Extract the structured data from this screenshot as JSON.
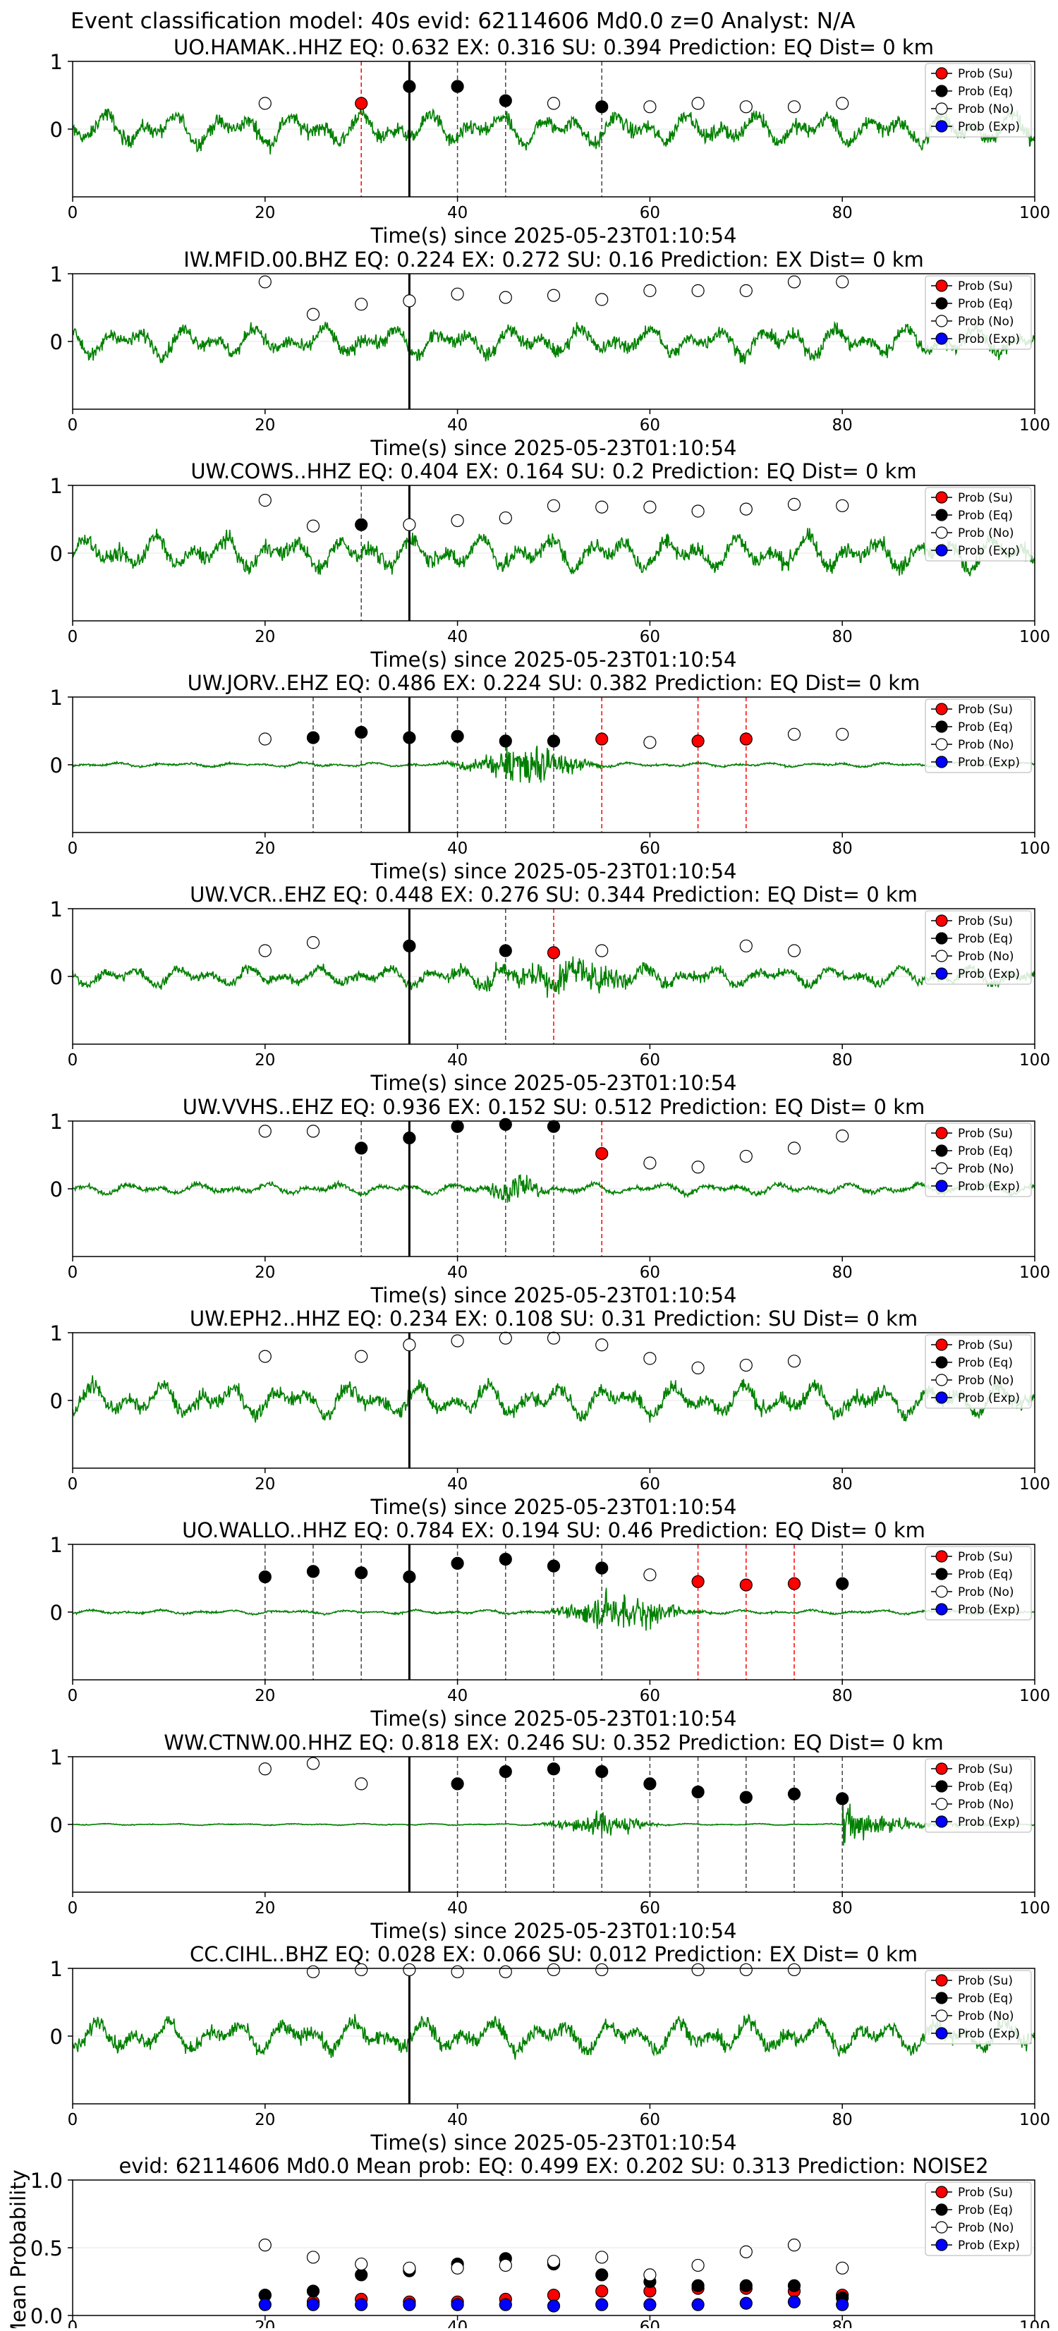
{
  "figure_title": "Event classification model: 40s evid: 62114606 Md0.0 z=0 Analyst: N/A",
  "legend_labels": [
    "Prob (Su)",
    "Prob (Eq)",
    "Prob (No)",
    "Prob (Exp)"
  ],
  "colors": {
    "trace": "#008000",
    "su": "#ff0000",
    "eq": "#000000",
    "no": "#ffffff",
    "exp": "#0000ff"
  },
  "chart_data": [
    {
      "type": "line",
      "station": "UO.HAMAK..HHZ",
      "title": "UO.HAMAK..HHZ   EQ: 0.632  EX: 0.316  SU: 0.394   Prediction: EQ    Dist= 0 km",
      "xlabel": "Time(s) since 2025-05-23T01:10:54",
      "xlim": [
        0,
        100
      ],
      "ylim": [
        -1,
        1
      ],
      "xticks": [
        "0",
        "20",
        "40",
        "60",
        "80",
        "100"
      ],
      "yticks": [
        "1",
        "0"
      ],
      "trace_amp": 0.75,
      "arrival": 35,
      "points": [
        {
          "x": 20,
          "y": 0.38,
          "c": "no"
        },
        {
          "x": 30,
          "y": 0.38,
          "c": "su"
        },
        {
          "x": 35,
          "y": 0.63,
          "c": "eq"
        },
        {
          "x": 40,
          "y": 0.63,
          "c": "eq"
        },
        {
          "x": 45,
          "y": 0.42,
          "c": "eq"
        },
        {
          "x": 50,
          "y": 0.38,
          "c": "no"
        },
        {
          "x": 55,
          "y": 0.33,
          "c": "eq"
        },
        {
          "x": 60,
          "y": 0.33,
          "c": "no"
        },
        {
          "x": 65,
          "y": 0.38,
          "c": "no"
        },
        {
          "x": 70,
          "y": 0.33,
          "c": "no"
        },
        {
          "x": 75,
          "y": 0.33,
          "c": "no"
        },
        {
          "x": 80,
          "y": 0.38,
          "c": "no"
        }
      ]
    },
    {
      "type": "line",
      "station": "IW.MFID.00.BHZ",
      "title": "IW.MFID.00.BHZ   EQ: 0.224  EX: 0.272  SU: 0.16   Prediction: EX    Dist= 0 km",
      "xlabel": "Time(s) since 2025-05-23T01:10:54",
      "xlim": [
        0,
        100
      ],
      "ylim": [
        -1,
        1
      ],
      "xticks": [
        "0",
        "20",
        "40",
        "60",
        "80",
        "100"
      ],
      "yticks": [
        "1",
        "0"
      ],
      "trace_amp": 0.7,
      "arrival": 35,
      "points": [
        {
          "x": 20,
          "y": 0.88,
          "c": "no"
        },
        {
          "x": 25,
          "y": 0.4,
          "c": "no"
        },
        {
          "x": 30,
          "y": 0.55,
          "c": "no"
        },
        {
          "x": 35,
          "y": 0.6,
          "c": "no"
        },
        {
          "x": 40,
          "y": 0.7,
          "c": "no"
        },
        {
          "x": 45,
          "y": 0.65,
          "c": "no"
        },
        {
          "x": 50,
          "y": 0.68,
          "c": "no"
        },
        {
          "x": 55,
          "y": 0.62,
          "c": "no"
        },
        {
          "x": 60,
          "y": 0.75,
          "c": "no"
        },
        {
          "x": 65,
          "y": 0.75,
          "c": "no"
        },
        {
          "x": 70,
          "y": 0.75,
          "c": "no"
        },
        {
          "x": 75,
          "y": 0.88,
          "c": "no"
        },
        {
          "x": 80,
          "y": 0.88,
          "c": "no"
        }
      ]
    },
    {
      "type": "line",
      "station": "UW.COWS..HHZ",
      "title": "UW.COWS..HHZ   EQ: 0.404  EX: 0.164  SU: 0.2   Prediction: EQ    Dist= 0 km",
      "xlabel": "Time(s) since 2025-05-23T01:10:54",
      "xlim": [
        0,
        100
      ],
      "ylim": [
        -1,
        1
      ],
      "xticks": [
        "0",
        "20",
        "40",
        "60",
        "80",
        "100"
      ],
      "yticks": [
        "1",
        "0"
      ],
      "trace_amp": 0.8,
      "arrival": 35,
      "points": [
        {
          "x": 20,
          "y": 0.78,
          "c": "no"
        },
        {
          "x": 25,
          "y": 0.4,
          "c": "no"
        },
        {
          "x": 30,
          "y": 0.42,
          "c": "eq"
        },
        {
          "x": 35,
          "y": 0.42,
          "c": "no"
        },
        {
          "x": 40,
          "y": 0.48,
          "c": "no"
        },
        {
          "x": 45,
          "y": 0.52,
          "c": "no"
        },
        {
          "x": 50,
          "y": 0.7,
          "c": "no"
        },
        {
          "x": 55,
          "y": 0.68,
          "c": "no"
        },
        {
          "x": 60,
          "y": 0.68,
          "c": "no"
        },
        {
          "x": 65,
          "y": 0.62,
          "c": "no"
        },
        {
          "x": 70,
          "y": 0.65,
          "c": "no"
        },
        {
          "x": 75,
          "y": 0.72,
          "c": "no"
        },
        {
          "x": 80,
          "y": 0.7,
          "c": "no"
        }
      ]
    },
    {
      "type": "line",
      "station": "UW.JORV..EHZ",
      "title": "UW.JORV..EHZ   EQ: 0.486  EX: 0.224  SU: 0.382   Prediction: EQ    Dist= 0 km",
      "xlabel": "Time(s) since 2025-05-23T01:10:54",
      "xlim": [
        0,
        100
      ],
      "ylim": [
        -1,
        1
      ],
      "xticks": [
        "0",
        "20",
        "40",
        "60",
        "80",
        "100"
      ],
      "yticks": [
        "1",
        "0"
      ],
      "trace_amp": 0.1,
      "burst": {
        "center": 47,
        "width": 5,
        "amp": 0.85
      },
      "arrival": 35,
      "points": [
        {
          "x": 20,
          "y": 0.38,
          "c": "no"
        },
        {
          "x": 25,
          "y": 0.4,
          "c": "eq"
        },
        {
          "x": 30,
          "y": 0.48,
          "c": "eq"
        },
        {
          "x": 35,
          "y": 0.4,
          "c": "eq"
        },
        {
          "x": 40,
          "y": 0.42,
          "c": "eq"
        },
        {
          "x": 45,
          "y": 0.35,
          "c": "eq"
        },
        {
          "x": 50,
          "y": 0.35,
          "c": "eq"
        },
        {
          "x": 55,
          "y": 0.38,
          "c": "su"
        },
        {
          "x": 60,
          "y": 0.33,
          "c": "no"
        },
        {
          "x": 65,
          "y": 0.35,
          "c": "su"
        },
        {
          "x": 70,
          "y": 0.38,
          "c": "su"
        },
        {
          "x": 75,
          "y": 0.45,
          "c": "no"
        },
        {
          "x": 80,
          "y": 0.45,
          "c": "no"
        }
      ]
    },
    {
      "type": "line",
      "station": "UW.VCR..EHZ",
      "title": "UW.VCR..EHZ   EQ: 0.448  EX: 0.276  SU: 0.344   Prediction: EQ    Dist= 0 km",
      "xlabel": "Time(s) since 2025-05-23T01:10:54",
      "xlim": [
        0,
        100
      ],
      "ylim": [
        -1,
        1
      ],
      "xticks": [
        "0",
        "20",
        "40",
        "60",
        "80",
        "100"
      ],
      "yticks": [
        "1",
        "0"
      ],
      "trace_amp": 0.45,
      "burst": {
        "center": 52,
        "width": 10,
        "amp": 0.6
      },
      "arrival": 35,
      "points": [
        {
          "x": 20,
          "y": 0.38,
          "c": "no"
        },
        {
          "x": 25,
          "y": 0.5,
          "c": "no"
        },
        {
          "x": 35,
          "y": 0.45,
          "c": "eq"
        },
        {
          "x": 45,
          "y": 0.38,
          "c": "eq"
        },
        {
          "x": 50,
          "y": 0.35,
          "c": "su"
        },
        {
          "x": 55,
          "y": 0.38,
          "c": "no"
        },
        {
          "x": 70,
          "y": 0.45,
          "c": "no"
        },
        {
          "x": 75,
          "y": 0.38,
          "c": "no"
        }
      ]
    },
    {
      "type": "line",
      "station": "UW.VVHS..EHZ",
      "title": "UW.VVHS..EHZ   EQ: 0.936  EX: 0.152  SU: 0.512   Prediction: EQ    Dist= 0 km",
      "xlabel": "Time(s) since 2025-05-23T01:10:54",
      "xlim": [
        0,
        100
      ],
      "ylim": [
        -1,
        1
      ],
      "xticks": [
        "0",
        "20",
        "40",
        "60",
        "80",
        "100"
      ],
      "yticks": [
        "1",
        "0"
      ],
      "trace_amp": 0.25,
      "burst": {
        "center": 46,
        "width": 2.5,
        "amp": 0.7
      },
      "arrival": 35,
      "points": [
        {
          "x": 20,
          "y": 0.85,
          "c": "no"
        },
        {
          "x": 25,
          "y": 0.85,
          "c": "no"
        },
        {
          "x": 30,
          "y": 0.6,
          "c": "eq"
        },
        {
          "x": 35,
          "y": 0.75,
          "c": "eq"
        },
        {
          "x": 40,
          "y": 0.92,
          "c": "eq"
        },
        {
          "x": 45,
          "y": 0.95,
          "c": "eq"
        },
        {
          "x": 50,
          "y": 0.92,
          "c": "eq"
        },
        {
          "x": 55,
          "y": 0.52,
          "c": "su"
        },
        {
          "x": 60,
          "y": 0.38,
          "c": "no"
        },
        {
          "x": 65,
          "y": 0.32,
          "c": "no"
        },
        {
          "x": 70,
          "y": 0.48,
          "c": "no"
        },
        {
          "x": 75,
          "y": 0.6,
          "c": "no"
        },
        {
          "x": 80,
          "y": 0.78,
          "c": "no"
        }
      ]
    },
    {
      "type": "line",
      "station": "UW.EPH2..HHZ",
      "title": "UW.EPH2..HHZ   EQ: 0.234  EX: 0.108  SU: 0.31   Prediction: SU",
      "xlabel": "Time(s) since 2025-05-23T01:10:54",
      "xlim": [
        0,
        100
      ],
      "ylim": [
        -1,
        1
      ],
      "xticks": [
        "0",
        "20",
        "40",
        "60",
        "80",
        "100"
      ],
      "yticks": [
        "1",
        "0"
      ],
      "trace_amp": 0.75,
      "arrival": 35,
      "dist_label": "Dist= 0 km",
      "points": [
        {
          "x": 20,
          "y": 0.65,
          "c": "no"
        },
        {
          "x": 30,
          "y": 0.65,
          "c": "no"
        },
        {
          "x": 35,
          "y": 0.82,
          "c": "no"
        },
        {
          "x": 40,
          "y": 0.88,
          "c": "no"
        },
        {
          "x": 45,
          "y": 0.92,
          "c": "no"
        },
        {
          "x": 50,
          "y": 0.92,
          "c": "no"
        },
        {
          "x": 55,
          "y": 0.82,
          "c": "no"
        },
        {
          "x": 60,
          "y": 0.62,
          "c": "no"
        },
        {
          "x": 65,
          "y": 0.48,
          "c": "no"
        },
        {
          "x": 70,
          "y": 0.52,
          "c": "no"
        },
        {
          "x": 75,
          "y": 0.58,
          "c": "no"
        }
      ]
    },
    {
      "type": "line",
      "station": "UO.WALLO..HHZ",
      "title": "UO.WALLO..HHZ   EQ: 0.784  EX: 0.194  SU: 0.46   Prediction: EQ    Dist= 0 km",
      "xlabel": "Time(s) since 2025-05-23T01:10:54",
      "xlim": [
        0,
        100
      ],
      "ylim": [
        -1,
        1
      ],
      "xticks": [
        "0",
        "20",
        "40",
        "60",
        "80",
        "100"
      ],
      "yticks": [
        "1",
        "0"
      ],
      "trace_amp": 0.1,
      "burst": {
        "center": 57,
        "width": 5,
        "amp": 0.85
      },
      "arrival": 35,
      "points": [
        {
          "x": 20,
          "y": 0.52,
          "c": "eq"
        },
        {
          "x": 25,
          "y": 0.6,
          "c": "eq"
        },
        {
          "x": 30,
          "y": 0.58,
          "c": "eq"
        },
        {
          "x": 35,
          "y": 0.52,
          "c": "eq"
        },
        {
          "x": 40,
          "y": 0.72,
          "c": "eq"
        },
        {
          "x": 45,
          "y": 0.78,
          "c": "eq"
        },
        {
          "x": 50,
          "y": 0.68,
          "c": "eq"
        },
        {
          "x": 55,
          "y": 0.65,
          "c": "eq"
        },
        {
          "x": 60,
          "y": 0.55,
          "c": "no"
        },
        {
          "x": 65,
          "y": 0.45,
          "c": "su"
        },
        {
          "x": 70,
          "y": 0.4,
          "c": "su"
        },
        {
          "x": 75,
          "y": 0.42,
          "c": "su"
        },
        {
          "x": 80,
          "y": 0.42,
          "c": "eq"
        }
      ]
    },
    {
      "type": "line",
      "station": "WW.CTNW.00.HHZ",
      "title": "WW.CTNW.00.HHZ   EQ: 0.818  EX: 0.246  SU: 0.352   Prediction: EQ    Dist= 0 km",
      "xlabel": "Time(s) since 2025-05-23T01:10:54",
      "xlim": [
        0,
        100
      ],
      "ylim": [
        -1,
        1
      ],
      "xticks": [
        "0",
        "20",
        "40",
        "60",
        "80",
        "100"
      ],
      "yticks": [
        "1",
        "0"
      ],
      "trace_amp": 0.04,
      "burst": {
        "center": 55,
        "width": 4,
        "amp": 0.55
      },
      "burst2": {
        "center": 84,
        "width": 5,
        "amp": 0.95
      },
      "arrival": 35,
      "points": [
        {
          "x": 20,
          "y": 0.82,
          "c": "no"
        },
        {
          "x": 25,
          "y": 0.9,
          "c": "no"
        },
        {
          "x": 30,
          "y": 0.6,
          "c": "no"
        },
        {
          "x": 40,
          "y": 0.6,
          "c": "eq"
        },
        {
          "x": 45,
          "y": 0.78,
          "c": "eq"
        },
        {
          "x": 50,
          "y": 0.82,
          "c": "eq"
        },
        {
          "x": 55,
          "y": 0.78,
          "c": "eq"
        },
        {
          "x": 60,
          "y": 0.6,
          "c": "eq"
        },
        {
          "x": 65,
          "y": 0.48,
          "c": "eq"
        },
        {
          "x": 70,
          "y": 0.4,
          "c": "eq"
        },
        {
          "x": 75,
          "y": 0.45,
          "c": "eq"
        },
        {
          "x": 80,
          "y": 0.38,
          "c": "eq"
        }
      ]
    },
    {
      "type": "line",
      "station": "CC.CIHL..BHZ",
      "title": "CC.CIHL..BHZ   EQ: 0.028  EX: 0.066  SU: 0.012   Prediction: EX    Dist= 0 km",
      "xlabel": "Time(s) since 2025-05-23T01:10:54",
      "xlim": [
        0,
        100
      ],
      "ylim": [
        -1,
        1
      ],
      "xticks": [
        "0",
        "20",
        "40",
        "60",
        "80",
        "100"
      ],
      "yticks": [
        "1",
        "0"
      ],
      "trace_amp": 0.75,
      "arrival": 35,
      "points": [
        {
          "x": 25,
          "y": 0.95,
          "c": "no"
        },
        {
          "x": 30,
          "y": 0.98,
          "c": "no"
        },
        {
          "x": 35,
          "y": 0.98,
          "c": "no"
        },
        {
          "x": 40,
          "y": 0.95,
          "c": "no"
        },
        {
          "x": 45,
          "y": 0.95,
          "c": "no"
        },
        {
          "x": 50,
          "y": 0.98,
          "c": "no"
        },
        {
          "x": 55,
          "y": 0.98,
          "c": "no"
        },
        {
          "x": 65,
          "y": 0.98,
          "c": "no"
        },
        {
          "x": 70,
          "y": 0.98,
          "c": "no"
        },
        {
          "x": 75,
          "y": 0.98,
          "c": "no"
        }
      ]
    },
    {
      "type": "scatter",
      "station": "mean",
      "title": "evid: 62114606  Md0.0   Mean prob:   EQ: 0.499  EX: 0.202  SU: 0.313   Prediction: NOISE2",
      "xlabel": "",
      "ylabel": "Mean Probability",
      "xlim": [
        0,
        100
      ],
      "ylim": [
        0,
        1
      ],
      "xticks": [
        "0",
        "20",
        "40",
        "60",
        "80",
        "100"
      ],
      "yticks": [
        "1.0",
        "0.5",
        "0.0"
      ],
      "series": [
        {
          "name": "Prob (Su)",
          "c": "su",
          "x": [
            20,
            25,
            30,
            35,
            40,
            45,
            50,
            55,
            60,
            65,
            70,
            75,
            80
          ],
          "y": [
            0.15,
            0.1,
            0.12,
            0.1,
            0.1,
            0.12,
            0.15,
            0.18,
            0.18,
            0.2,
            0.2,
            0.18,
            0.15
          ]
        },
        {
          "name": "Prob (Eq)",
          "c": "eq",
          "x": [
            20,
            25,
            30,
            35,
            40,
            45,
            50,
            55,
            60,
            65,
            70,
            75,
            80
          ],
          "y": [
            0.15,
            0.18,
            0.3,
            0.33,
            0.38,
            0.42,
            0.38,
            0.3,
            0.25,
            0.22,
            0.22,
            0.22,
            0.13
          ]
        },
        {
          "name": "Prob (No)",
          "c": "no",
          "x": [
            20,
            25,
            30,
            35,
            40,
            45,
            50,
            55,
            60,
            65,
            70,
            75,
            80
          ],
          "y": [
            0.52,
            0.43,
            0.38,
            0.35,
            0.35,
            0.37,
            0.4,
            0.43,
            0.3,
            0.37,
            0.47,
            0.52,
            0.35
          ]
        },
        {
          "name": "Prob (Exp)",
          "c": "exp",
          "x": [
            20,
            25,
            30,
            35,
            40,
            45,
            50,
            55,
            60,
            65,
            70,
            75,
            80
          ],
          "y": [
            0.08,
            0.08,
            0.08,
            0.08,
            0.08,
            0.08,
            0.07,
            0.08,
            0.08,
            0.08,
            0.09,
            0.1,
            0.08
          ]
        }
      ]
    }
  ]
}
